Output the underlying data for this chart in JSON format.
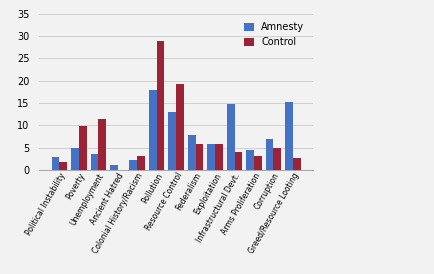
{
  "categories": [
    "Political Instability",
    "Poverty",
    "Unemployment",
    "Ancient Hatred",
    "Colonial History/Racism",
    "Pollution",
    "Resource Control",
    "Federalism",
    "Exploitation",
    "Infrastructural Devt.",
    "Arms Proliferation",
    "Corruption",
    "Greed/Resource Looting"
  ],
  "amnesty": [
    2.8,
    4.8,
    3.5,
    1.0,
    2.2,
    18.0,
    13.0,
    7.8,
    5.7,
    14.7,
    4.5,
    7.0,
    15.3
  ],
  "control": [
    1.7,
    9.9,
    11.5,
    0.0,
    3.2,
    28.8,
    19.2,
    5.7,
    5.7,
    4.0,
    3.2,
    4.9,
    2.6
  ],
  "amnesty_color": "#4472c4",
  "control_color": "#9b2335",
  "background_color": "#f2f2f2",
  "ylim": [
    0,
    35
  ],
  "yticks": [
    0,
    5,
    10,
    15,
    20,
    25,
    30,
    35
  ],
  "bar_width": 0.4,
  "legend_labels": [
    "Amnesty",
    "Control"
  ],
  "grid": true
}
